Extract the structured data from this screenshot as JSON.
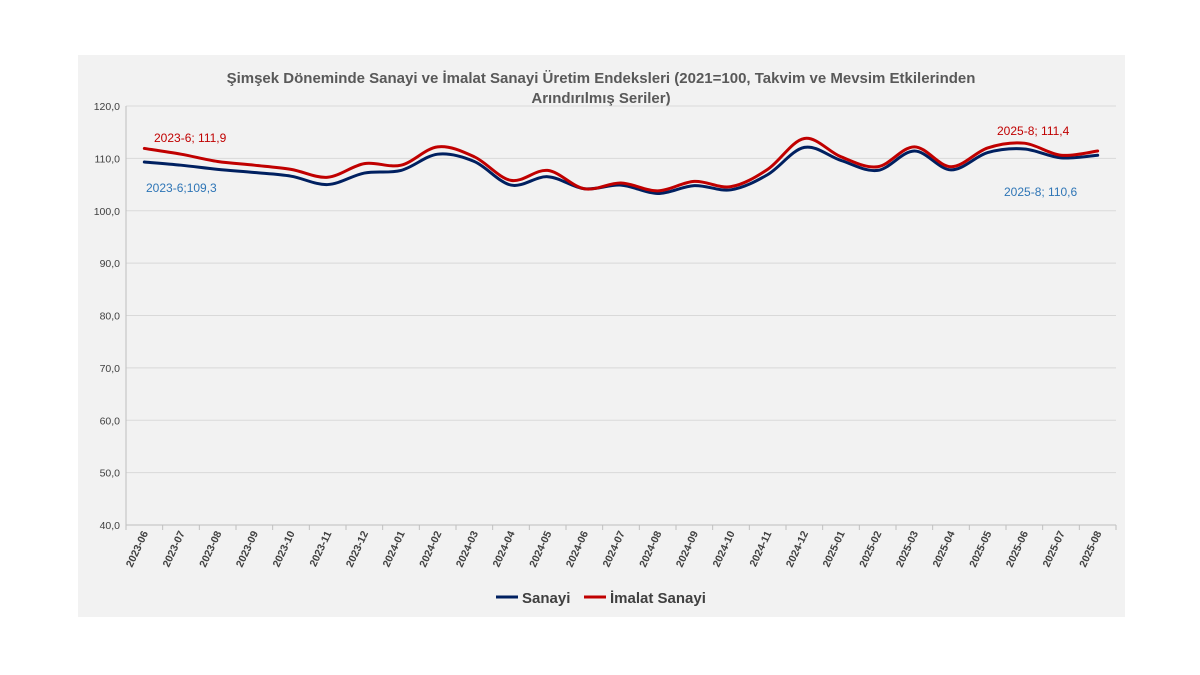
{
  "chart_data": {
    "type": "line",
    "title": "Şimşek Döneminde Sanayi ve İmalat Sanayi Üretim Endeksleri (2021=100, Takvim ve Mevsim Etkilerinden Arındırılmış Seriler)",
    "title_lines": [
      "Şimşek Döneminde Sanayi ve İmalat Sanayi Üretim Endeksleri (2021=100, Takvim ve Mevsim Etkilerinden",
      "Arındırılmış Seriler)"
    ],
    "categories": [
      "2023-06",
      "2023-07",
      "2023-08",
      "2023-09",
      "2023-10",
      "2023-11",
      "2023-12",
      "2024-01",
      "2024-02",
      "2024-03",
      "2024-04",
      "2024-05",
      "2024-06",
      "2024-07",
      "2024-08",
      "2024-09",
      "2024-10",
      "2024-11",
      "2024-12",
      "2025-01",
      "2025-02",
      "2025-03",
      "2025-04",
      "2025-05",
      "2025-06",
      "2025-07",
      "2025-08"
    ],
    "series": [
      {
        "name": "Sanayi",
        "color": "#002060",
        "values": [
          109.3,
          108.7,
          107.9,
          107.3,
          106.6,
          105.0,
          107.2,
          107.7,
          110.8,
          109.4,
          104.9,
          106.5,
          104.2,
          104.9,
          103.3,
          104.8,
          104.0,
          106.9,
          112.1,
          109.6,
          107.7,
          111.4,
          107.8,
          111.1,
          111.8,
          110.1,
          110.6
        ]
      },
      {
        "name": "İmalat Sanayi",
        "color": "#C00000",
        "values": [
          111.9,
          110.8,
          109.4,
          108.7,
          107.9,
          106.4,
          109.0,
          108.7,
          112.2,
          110.3,
          105.8,
          107.7,
          104.2,
          105.3,
          103.8,
          105.6,
          104.6,
          107.9,
          113.8,
          110.3,
          108.4,
          112.2,
          108.4,
          112.0,
          112.9,
          110.6,
          111.4
        ]
      }
    ],
    "ylim": [
      40,
      120
    ],
    "yticks": [
      "40,0",
      "50,0",
      "60,0",
      "70,0",
      "80,0",
      "90,0",
      "100,0",
      "110,0",
      "120,0"
    ],
    "xlabel": "",
    "ylabel": "",
    "grid": true,
    "legend_position": "bottom",
    "annotations": [
      {
        "text": "2023-6;  111,9",
        "color": "#C00000"
      },
      {
        "text": "2023-6;109,3",
        "color": "#2E75B6"
      },
      {
        "text": "2025-8;  111,4",
        "color": "#C00000"
      },
      {
        "text": "2025-8;  110,6",
        "color": "#2E75B6"
      }
    ]
  }
}
